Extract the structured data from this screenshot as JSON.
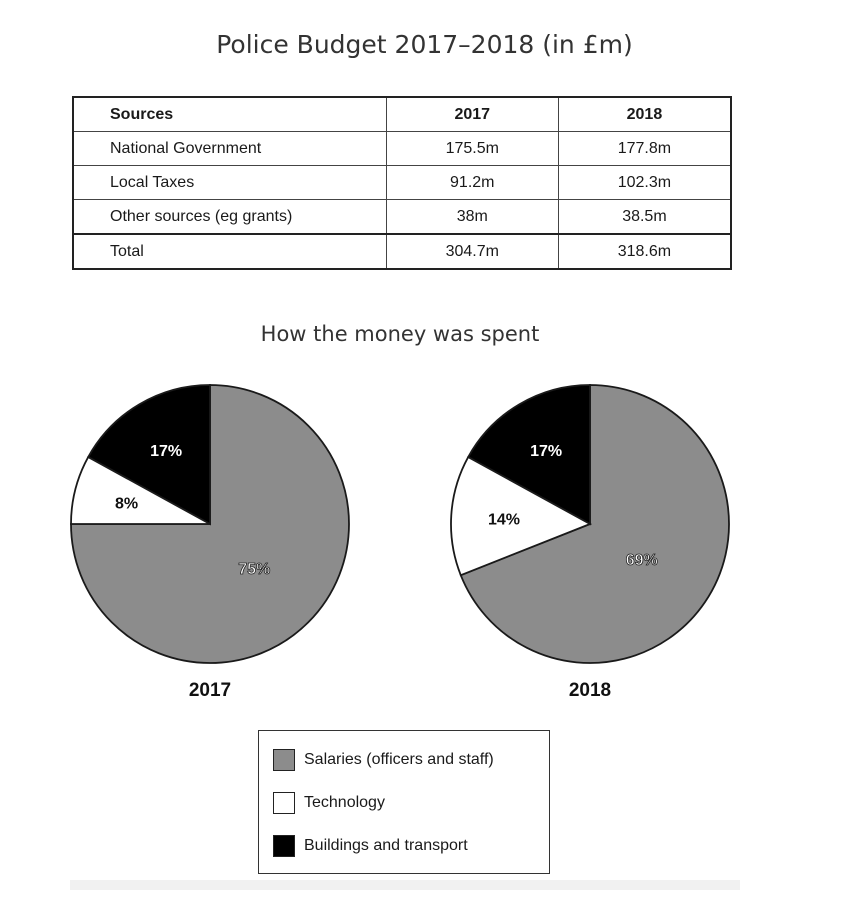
{
  "title": "Police Budget 2017–2018 (in £m)",
  "table": {
    "headers": [
      "Sources",
      "2017",
      "2018"
    ],
    "rows": [
      [
        "National Government",
        "175.5m",
        "177.8m"
      ],
      [
        "Local Taxes",
        "91.2m",
        "102.3m"
      ],
      [
        "Other sources (eg grants)",
        "38m",
        "38.5m"
      ],
      [
        "Total",
        "304.7m",
        "318.6m"
      ]
    ]
  },
  "subtitle": "How the money was spent",
  "legend": [
    {
      "label": "Salaries (officers and staff)",
      "color": "#8c8c8c"
    },
    {
      "label": "Technology",
      "color": "#ffffff"
    },
    {
      "label": "Buildings and transport",
      "color": "#000000"
    }
  ],
  "chart_data": [
    {
      "type": "table",
      "title": "Police Budget 2017–2018 (in £m)",
      "columns": [
        "Sources",
        "2017",
        "2018"
      ],
      "rows": [
        [
          "National Government",
          "175.5m",
          "177.8m"
        ],
        [
          "Local Taxes",
          "91.2m",
          "102.3m"
        ],
        [
          "Other sources (eg grants)",
          "38m",
          "38.5m"
        ],
        [
          "Total",
          "304.7m",
          "318.6m"
        ]
      ]
    },
    {
      "type": "pie",
      "title": "2017",
      "categories": [
        "Salaries (officers and staff)",
        "Technology",
        "Buildings and transport"
      ],
      "values": [
        75,
        8,
        17
      ],
      "labels": [
        "75%",
        "8%",
        "17%"
      ],
      "colors": [
        "#8c8c8c",
        "#ffffff",
        "#000000"
      ]
    },
    {
      "type": "pie",
      "title": "2018",
      "categories": [
        "Salaries (officers and staff)",
        "Technology",
        "Buildings and transport"
      ],
      "values": [
        69,
        14,
        17
      ],
      "labels": [
        "69%",
        "14%",
        "17%"
      ],
      "colors": [
        "#8c8c8c",
        "#ffffff",
        "#000000"
      ]
    }
  ]
}
